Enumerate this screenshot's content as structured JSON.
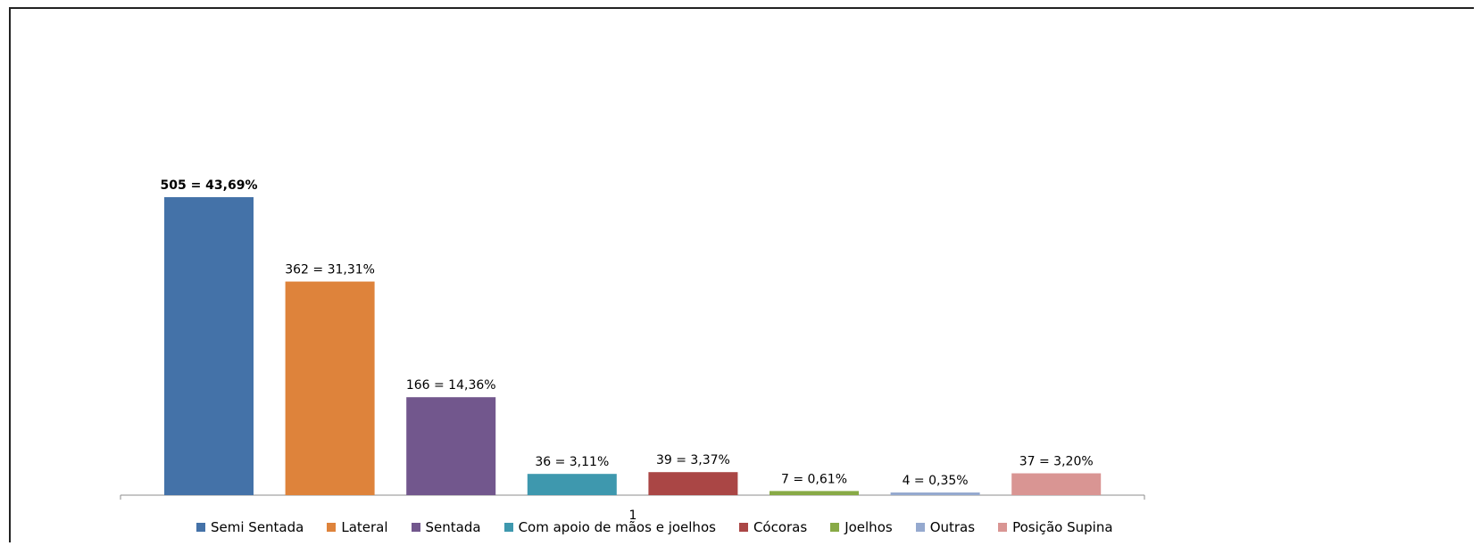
{
  "chart_data": {
    "type": "bar",
    "categories": [
      "1"
    ],
    "series": [
      {
        "name": "Semi Sentada",
        "values": [
          505
        ],
        "label": "505 = 43,69%",
        "color": "#4472a8",
        "bold": true
      },
      {
        "name": "Lateral",
        "values": [
          362
        ],
        "label": "362 = 31,31%",
        "color": "#de833b"
      },
      {
        "name": "Sentada",
        "values": [
          166
        ],
        "label": "166 = 14,36%",
        "color": "#72578d"
      },
      {
        "name": "Com apoio de mãos e joelhos",
        "values": [
          36
        ],
        "label": "36 = 3,11%",
        "color": "#3e98ae"
      },
      {
        "name": "Cócoras",
        "values": [
          39
        ],
        "label": "39 = 3,37%",
        "color": "#aa4645"
      },
      {
        "name": "Joelhos",
        "values": [
          7
        ],
        "label": "7 = 0,61%",
        "color": "#88aa46"
      },
      {
        "name": "Outras",
        "values": [
          4
        ],
        "label": "4 = 0,35%",
        "color": "#95a9cf"
      },
      {
        "name": "Posição Supina",
        "values": [
          37
        ],
        "label": "37 = 3,20%",
        "color": "#d99593"
      }
    ],
    "ylim": [
      0,
      505
    ],
    "grid": false,
    "legend_position": "bottom"
  }
}
